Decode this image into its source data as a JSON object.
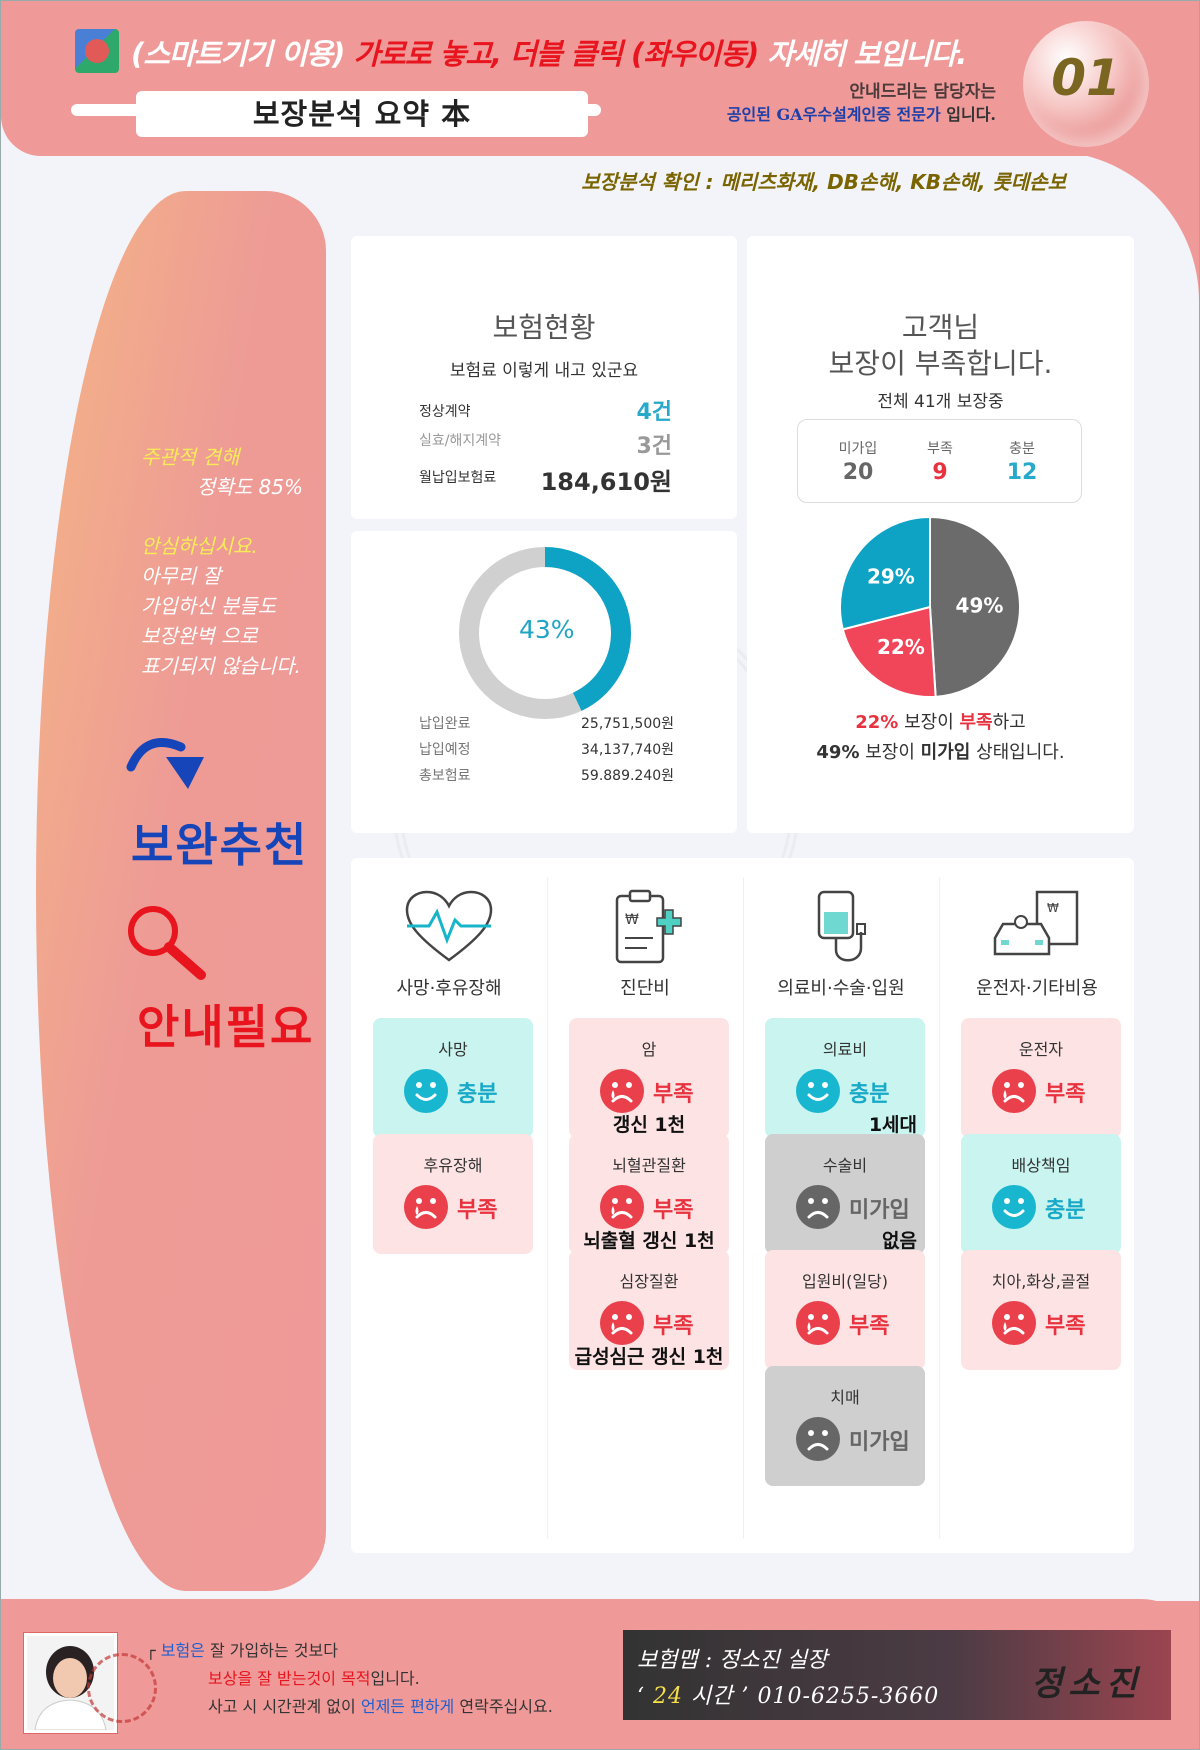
{
  "header": {
    "headline_prefix": "(스마트기기 이용)",
    "headline_red": "가로로 놓고, 더블 클릭 (좌우이동)",
    "headline_suffix": "자세히 보입니다.",
    "title": "보장분석 요약 本",
    "guide_line1": "안내드리는 담당자는",
    "guide_line2_blue": "공인된 GA우수설계인증 전문가",
    "guide_line2_tail": "입니다.",
    "page_number": "01",
    "confirm": "보장분석 확인 : 메리츠화재, DB손해, KB손해, 롯데손보"
  },
  "sidebar": {
    "opinion_label": "주관적 견해",
    "accuracy": "정확도 85%",
    "reassure": "안심하십시요.",
    "lines": [
      "아무리 잘",
      "가입하신 분들도",
      "보장완벽 으로",
      "표기되지 않습니다."
    ],
    "recommend": "보완추천",
    "guide_needed": "안내필요"
  },
  "status": {
    "title": "보험현황",
    "subtitle": "보험료 이렇게 내고 있군요",
    "rows": [
      {
        "label": "정상계약",
        "value": "4건"
      },
      {
        "label": "실효/해지계약",
        "value": "3건"
      },
      {
        "label": "월납입보험료",
        "value": "184,610원"
      }
    ]
  },
  "payment": {
    "paid_percent_label": "43%",
    "paid_fraction": 0.43,
    "rows": [
      {
        "label": "납입완료",
        "value": "25,751,500원"
      },
      {
        "label": "납입예정",
        "value": "34,137,740원"
      },
      {
        "label": "총보험료",
        "value": "59.889.240원"
      }
    ]
  },
  "customer": {
    "title_line1": "고객님",
    "title_line2": "보장이 부족합니다.",
    "subtitle": "전체 41개 보장중",
    "stats": [
      {
        "label": "미가입",
        "value": "20",
        "color": "#666666"
      },
      {
        "label": "부족",
        "value": "9",
        "color": "#e8323f"
      },
      {
        "label": "충분",
        "value": "12",
        "color": "#27a9c9"
      }
    ],
    "note1_pct": "22%",
    "note1_mid": "보장이",
    "note1_red": "부족",
    "note1_tail": "하고",
    "note2_pct": "49%",
    "note2_mid": "보장이",
    "note2_bold": "미가입",
    "note2_tail": "상태입니다."
  },
  "chart_data": {
    "type": "pie",
    "categories": [
      "미가입",
      "부족",
      "충분"
    ],
    "values": [
      49,
      22,
      29
    ],
    "labels": [
      "49%",
      "22%",
      "29%"
    ],
    "colors": [
      "#6b6b6b",
      "#f1465a",
      "#0ea3c4"
    ]
  },
  "categories": [
    {
      "label": "사망·후유장해",
      "icon": "heartbeat-icon"
    },
    {
      "label": "진단비",
      "icon": "clipboard-medical-icon"
    },
    {
      "label": "의료비·수술·입원",
      "icon": "iv-bag-icon"
    },
    {
      "label": "운전자·기타비용",
      "icon": "car-document-icon"
    }
  ],
  "tiles": {
    "c0": [
      {
        "name": "사망",
        "status": "충분",
        "kind": "good",
        "extra": ""
      },
      {
        "name": "후유장해",
        "status": "부족",
        "kind": "bad",
        "extra": ""
      }
    ],
    "c1": [
      {
        "name": "암",
        "status": "부족",
        "kind": "bad",
        "extra": "갱신 1천"
      },
      {
        "name": "뇌혈관질환",
        "status": "부족",
        "kind": "bad",
        "extra": "뇌출혈 갱신 1천"
      },
      {
        "name": "심장질환",
        "status": "부족",
        "kind": "bad",
        "extra": "급성심근 갱신 1천"
      }
    ],
    "c2": [
      {
        "name": "의료비",
        "status": "충분",
        "kind": "good",
        "extra": "1세대"
      },
      {
        "name": "수술비",
        "status": "미가입",
        "kind": "none",
        "extra": "없음"
      },
      {
        "name": "입원비(일당)",
        "status": "부족",
        "kind": "bad",
        "extra": ""
      },
      {
        "name": "치매",
        "status": "미가입",
        "kind": "none",
        "extra": ""
      }
    ],
    "c3": [
      {
        "name": "운전자",
        "status": "부족",
        "kind": "bad",
        "extra": ""
      },
      {
        "name": "배상책임",
        "status": "충분",
        "kind": "good",
        "extra": ""
      },
      {
        "name": "치아,화상,골절",
        "status": "부족",
        "kind": "bad",
        "extra": ""
      }
    ]
  },
  "footer": {
    "q1_prefix": "┌",
    "q1_blue": "보험은",
    "q1_tail": "잘 가입하는 것보다",
    "q2_red": "보상을 잘 받는것이 목적",
    "q2_tail": "입니다.",
    "q3_a": "사고 시 시간관계 없이",
    "q3_blue1": "언제든",
    "q3_blue2": "편하게",
    "q3_tail": "연락주십시요.",
    "name_line": "보험맵 : 정소진 실장",
    "phone_prefix": "‘",
    "phone_hours": "24",
    "phone_mid": "시간 ’",
    "phone": "010-6255-3660",
    "signature": "정소진"
  }
}
